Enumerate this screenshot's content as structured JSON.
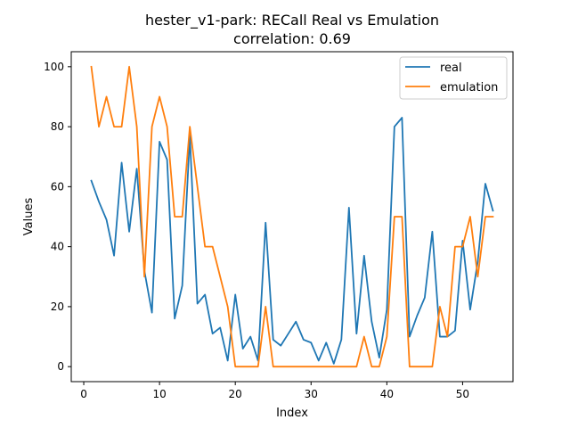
{
  "chart_data": {
    "type": "line",
    "title": "hester_v1-park: RECall Real vs Emulation",
    "subtitle": "correlation: 0.69",
    "xlabel": "Index",
    "ylabel": "Values",
    "xlim": [
      -1.65,
      56.65
    ],
    "ylim": [
      -5,
      105
    ],
    "xticks": [
      0,
      10,
      20,
      30,
      40,
      50
    ],
    "yticks": [
      0,
      20,
      40,
      60,
      80,
      100
    ],
    "grid": false,
    "legend": "top-right",
    "x": [
      1,
      2,
      3,
      4,
      5,
      6,
      7,
      8,
      9,
      10,
      11,
      12,
      13,
      14,
      15,
      16,
      17,
      18,
      19,
      20,
      21,
      22,
      23,
      24,
      25,
      26,
      27,
      28,
      29,
      30,
      31,
      32,
      33,
      34,
      35,
      36,
      37,
      38,
      39,
      40,
      41,
      42,
      43,
      44,
      45,
      46,
      47,
      48,
      49,
      50,
      51,
      52,
      53,
      54
    ],
    "series": [
      {
        "name": "real",
        "color": "#1f77b4",
        "values": [
          62,
          55,
          49,
          37,
          68,
          45,
          66,
          32,
          18,
          75,
          69,
          16,
          27,
          77,
          21,
          24,
          11,
          13,
          2,
          24,
          6,
          10,
          2,
          48,
          9,
          7,
          11,
          15,
          9,
          8,
          2,
          8,
          1,
          9,
          53,
          11,
          37,
          15,
          3,
          19,
          80,
          83,
          10,
          17,
          23,
          45,
          10,
          10,
          12,
          42,
          19,
          35,
          61,
          52
        ]
      },
      {
        "name": "emulation",
        "color": "#ff7f0e",
        "values": [
          100,
          80,
          90,
          80,
          80,
          100,
          80,
          30,
          80,
          90,
          80,
          50,
          50,
          80,
          60,
          40,
          40,
          30,
          20,
          0,
          0,
          0,
          0,
          20,
          0,
          0,
          0,
          0,
          0,
          0,
          0,
          0,
          0,
          0,
          0,
          0,
          10,
          0,
          0,
          10,
          50,
          50,
          0,
          0,
          0,
          0,
          20,
          10,
          40,
          40,
          50,
          30,
          50,
          50
        ]
      }
    ]
  }
}
